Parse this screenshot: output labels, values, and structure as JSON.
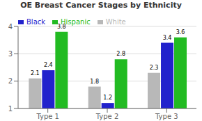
{
  "chart_data": {
    "type": "bar",
    "title": "OE Breast Cancer Stages by Ethnicity",
    "categories": [
      "Type 1",
      "Type 2",
      "Type 3"
    ],
    "series": [
      {
        "name": "White",
        "color": "#b8b8b8",
        "values": [
          2.1,
          1.8,
          2.3
        ]
      },
      {
        "name": "Black",
        "color": "#2222cc",
        "values": [
          2.4,
          1.2,
          3.4
        ]
      },
      {
        "name": "Hispanic",
        "color": "#22bb22",
        "values": [
          3.8,
          2.8,
          3.6
        ]
      }
    ],
    "ylim": [
      1,
      4
    ],
    "yticks": [
      1,
      2,
      3,
      4
    ],
    "grid": true,
    "legend": "upper left",
    "data_labels": true
  }
}
